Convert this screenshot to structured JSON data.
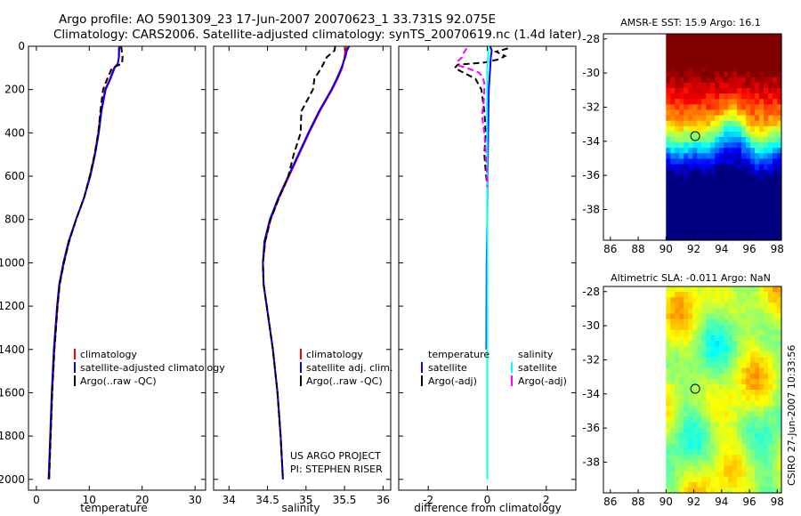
{
  "figure": {
    "title_line1": "Argo profile: AO 5901309_23 17-Jun-2007 20070623_1 33.731S 92.075E",
    "title_line2": "Climatology: CARS2006. Satellite-adjusted climatology: synTS_20070619.nc (1.4d later)",
    "credit": "CSIRO 27-Jun-2007 10:33:56",
    "project_line1": "US ARGO PROJECT",
    "project_line2": "PI: STEPHEN RISER"
  },
  "colors": {
    "climatology": "#ff0000",
    "satellite": "#0000ff",
    "argo": "#000000",
    "sat_salinity": "#00ffff",
    "argo_salinity": "#ff00ff"
  },
  "chart_data": [
    {
      "type": "line",
      "id": "temperature",
      "xlabel": "temperature",
      "xlim": [
        -1.5,
        32
      ],
      "ylim": [
        0,
        2050
      ],
      "xticks": [
        0,
        10,
        20,
        30
      ],
      "yticks": [
        0,
        200,
        400,
        600,
        800,
        1000,
        1200,
        1400,
        1600,
        1800,
        2000
      ],
      "legend": [
        "climatology",
        "satellite-adjusted climatology",
        "Argo(..raw -QC)"
      ],
      "depth": [
        0,
        10,
        50,
        80,
        100,
        150,
        200,
        300,
        400,
        500,
        600,
        700,
        800,
        900,
        1000,
        1100,
        1200,
        1400,
        1600,
        1800,
        2000
      ],
      "series": [
        {
          "name": "climatology",
          "color": "climatology",
          "dash": "none",
          "values": [
            15.7,
            15.7,
            15.6,
            15.4,
            14.7,
            13.9,
            13.0,
            12.2,
            11.7,
            11.0,
            10.1,
            9.0,
            7.5,
            6.2,
            5.2,
            4.4,
            4.0,
            3.4,
            3.0,
            2.7,
            2.4
          ]
        },
        {
          "name": "satellite-adjusted climatology",
          "color": "satellite",
          "dash": "none",
          "values": [
            15.7,
            15.6,
            15.6,
            15.4,
            14.8,
            14.0,
            13.1,
            12.3,
            11.8,
            11.1,
            10.2,
            9.0,
            7.5,
            6.1,
            5.1,
            4.3,
            3.9,
            3.3,
            2.9,
            2.6,
            2.3
          ]
        },
        {
          "name": "Argo(..raw -QC)",
          "color": "argo",
          "dash": "7,4",
          "values": [
            16.0,
            16.1,
            16.3,
            16.2,
            14.3,
            13.4,
            12.6,
            12.1,
            11.7,
            11.0,
            10.1,
            9.0,
            7.5,
            6.2,
            5.2,
            4.4,
            4.0,
            3.4,
            3.0,
            2.7,
            2.4
          ]
        }
      ]
    },
    {
      "type": "line",
      "id": "salinity",
      "xlabel": "salinity",
      "xlim": [
        33.8,
        36.1
      ],
      "ylim": [
        0,
        2050
      ],
      "xticks": [
        34,
        34.5,
        35,
        35.5,
        36
      ],
      "yticks": [
        0,
        200,
        400,
        600,
        800,
        1000,
        1200,
        1400,
        1600,
        1800,
        2000
      ],
      "legend": [
        "climatology",
        "satellite adj. clim.",
        "Argo(..raw -QC)"
      ],
      "depth": [
        0,
        20,
        50,
        100,
        150,
        200,
        300,
        400,
        500,
        600,
        700,
        800,
        900,
        1000,
        1100,
        1200,
        1400,
        1600,
        1800,
        2000
      ],
      "series": [
        {
          "name": "climatology",
          "color": "climatology",
          "dash": "none",
          "values": [
            35.53,
            35.51,
            35.5,
            35.47,
            35.41,
            35.34,
            35.18,
            35.04,
            34.91,
            34.78,
            34.65,
            34.54,
            34.47,
            34.44,
            34.45,
            34.49,
            34.57,
            34.63,
            34.67,
            34.7
          ]
        },
        {
          "name": "satellite adj. clim.",
          "color": "satellite",
          "dash": "none",
          "values": [
            35.56,
            35.53,
            35.51,
            35.46,
            35.4,
            35.33,
            35.17,
            35.03,
            34.9,
            34.77,
            34.64,
            34.53,
            34.46,
            34.44,
            34.45,
            34.49,
            34.57,
            34.63,
            34.67,
            34.7
          ]
        },
        {
          "name": "Argo(..raw -QC)",
          "color": "argo",
          "dash": "7,4",
          "values": [
            35.38,
            35.37,
            35.27,
            35.2,
            35.11,
            35.09,
            34.94,
            34.93,
            34.84,
            34.77,
            34.65,
            34.54,
            34.47,
            34.44,
            34.45,
            34.49,
            34.57,
            34.63,
            34.67,
            34.7
          ]
        }
      ]
    },
    {
      "type": "line",
      "id": "difference",
      "xlabel": "difference from climatology",
      "xlim": [
        -3,
        3
      ],
      "ylim": [
        0,
        2050
      ],
      "xticks": [
        -2,
        0,
        2
      ],
      "yticks": [
        0,
        200,
        400,
        600,
        800,
        1000,
        1200,
        1400,
        1600,
        1800,
        2000
      ],
      "legend_temperature_title": "temperature",
      "legend_salinity_title": "salinity",
      "legend_temperature": [
        "satellite",
        "Argo(-adj)"
      ],
      "legend_salinity": [
        "satellite",
        "Argo(-adj)"
      ],
      "series": [
        {
          "name": "temperature satellite",
          "color": "satellite",
          "dash": "none",
          "depth": [
            0,
            20,
            50,
            100,
            200,
            300,
            400,
            600,
            800,
            1000,
            1400
          ],
          "values": [
            0.1,
            0.15,
            0.12,
            0.1,
            0.05,
            0.04,
            0.03,
            0.01,
            0.0,
            -0.02,
            -0.03
          ]
        },
        {
          "name": "temperature Argo(-adj)",
          "color": "argo",
          "dash": "7,4",
          "depth": [
            10,
            25,
            45,
            60,
            75,
            85,
            100,
            115,
            150,
            200,
            300,
            400,
            500,
            580,
            650,
            700
          ],
          "values": [
            0.7,
            0.3,
            0.6,
            0.4,
            -0.1,
            -1.0,
            -1.1,
            -0.9,
            -0.4,
            -0.2,
            -0.1,
            -0.05,
            -0.1,
            -0.05,
            0.0,
            0.0
          ]
        },
        {
          "name": "salinity satellite",
          "color": "sat_salinity",
          "dash": "none",
          "depth": [
            0,
            30,
            100,
            300,
            600,
            1000,
            1500,
            2000
          ],
          "values": [
            0.03,
            0.04,
            0.0,
            -0.01,
            0.0,
            0.0,
            0.0,
            0.0
          ]
        },
        {
          "name": "salinity Argo(-adj)",
          "color": "argo_salinity",
          "dash": "7,4",
          "depth": [
            10,
            30,
            50,
            70,
            90,
            100,
            120,
            140,
            170,
            200,
            260,
            320,
            400,
            500,
            600,
            650
          ],
          "values": [
            -0.7,
            -0.8,
            -0.85,
            -1.0,
            -0.95,
            -0.7,
            -0.3,
            -0.15,
            -0.1,
            -0.1,
            -0.12,
            -0.18,
            -0.1,
            -0.05,
            -0.01,
            0.0
          ]
        }
      ]
    },
    {
      "type": "heatmap",
      "id": "sst-map",
      "title": "AMSR-E SST: 15.9 Argo: 16.1",
      "xlim": [
        85.5,
        98.3
      ],
      "ylim": [
        -39.8,
        -27.7
      ],
      "xticks": [
        86,
        88,
        90,
        92,
        94,
        96,
        98
      ],
      "yticks": [
        -28,
        -30,
        -32,
        -34,
        -36,
        -38
      ],
      "data_xlim": [
        90,
        98.3
      ],
      "marker": {
        "lon": 92.1,
        "lat": -33.7
      }
    },
    {
      "type": "heatmap",
      "id": "sla-map",
      "title": "Altimetric SLA: -0.011 Argo: NaN",
      "xlim": [
        85.5,
        98.3
      ],
      "ylim": [
        -39.8,
        -27.7
      ],
      "xticks": [
        86,
        88,
        90,
        92,
        94,
        96,
        98
      ],
      "yticks": [
        -28,
        -30,
        -32,
        -34,
        -36,
        -38
      ],
      "data_xlim": [
        90,
        98.3
      ],
      "marker": {
        "lon": 92.1,
        "lat": -33.7
      }
    }
  ]
}
